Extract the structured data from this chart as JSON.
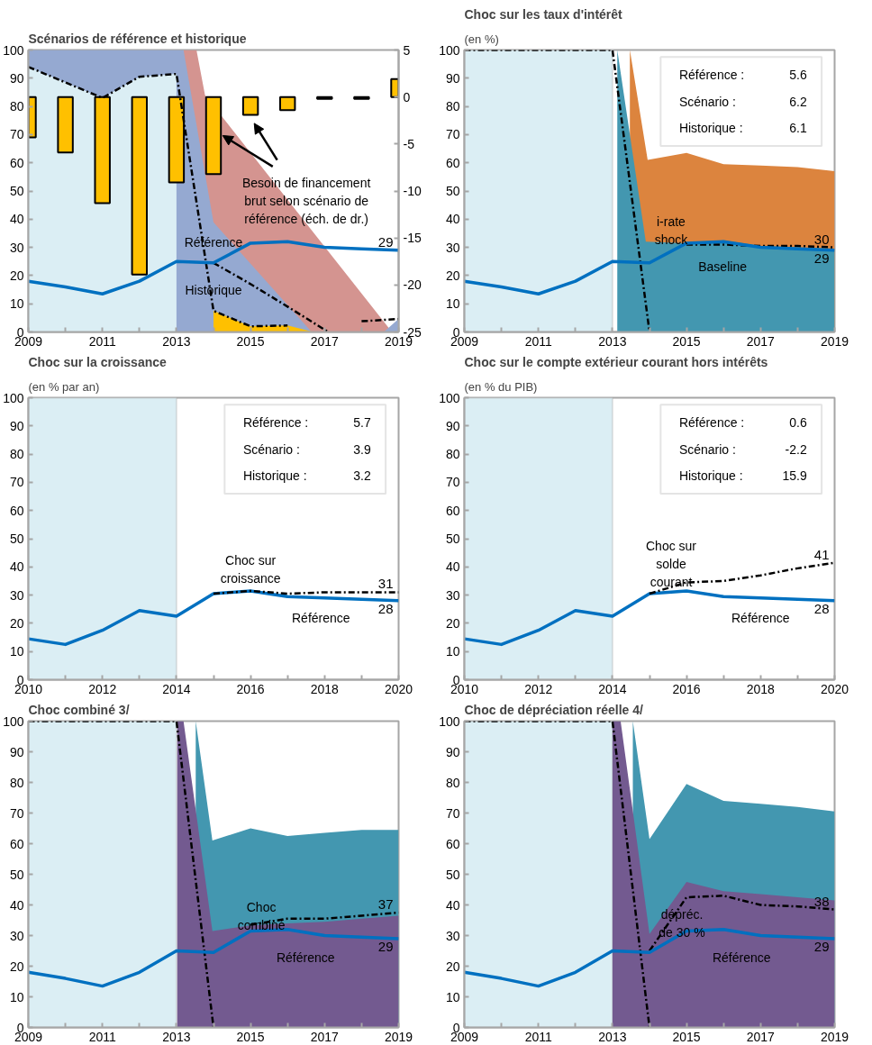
{
  "chart_data": [
    {
      "type": "line",
      "title": "Scénarios de référence et historique",
      "xlim": [
        2009,
        2019
      ],
      "xticks": [
        2009,
        {
          "value": 2010,
          "label": null
        },
        2011,
        {
          "value": 2012,
          "label": null
        },
        2013,
        {
          "value": 2014,
          "label": null
        },
        2015,
        {
          "value": 2016,
          "label": null
        },
        2017,
        {
          "value": 2018,
          "label": null
        },
        2019
      ],
      "ylim": [
        0,
        100
      ],
      "yticks": [
        0,
        10,
        20,
        30,
        40,
        50,
        60,
        70,
        80,
        90,
        100
      ],
      "y2lim": [
        -25,
        5
      ],
      "y2ticks": [
        -25,
        -20,
        -15,
        -10,
        -5,
        0,
        5
      ],
      "series": [
        {
          "type": "area",
          "color": "#d49490",
          "x": [
            2013.19,
            2013.54,
            2013.77,
            2018.82
          ],
          "values": [
            100,
            100,
            84,
            0
          ]
        },
        {
          "type": "area",
          "color": "#95a9d1",
          "x": [
            2009,
            2010,
            2011,
            2012,
            2013,
            2013.19,
            2014,
            2016.65,
            2018.6,
            2019
          ],
          "values": [
            100,
            100,
            100,
            100,
            100,
            100,
            38.9,
            0,
            0,
            4.6
          ]
        },
        {
          "type": "area",
          "color": "#dbeef4",
          "x": [
            2009,
            2010,
            2011,
            2012,
            2013
          ],
          "values": [
            94,
            88.5,
            83,
            90.5,
            91.5
          ]
        },
        {
          "type": "area",
          "color": "#ffc000",
          "x": [
            2014,
            2015,
            2016,
            2016.7
          ],
          "values": [
            7.5,
            2,
            2.3,
            0
          ]
        },
        {
          "type": "bar",
          "axis": "y2",
          "name": "Besoin de financement\nbrut selon scénario de\nréférence (éch. de dr.)",
          "color": "#ffc000",
          "x": [
            2009,
            2010,
            2011,
            2012,
            2013,
            2014,
            2015,
            2016,
            2017,
            2018,
            2019
          ],
          "values": [
            -4.3,
            -5.9,
            -11.3,
            -18.9,
            -9.1,
            -8.2,
            -1.9,
            -1.4,
            -0.2,
            -0.2,
            1.9
          ]
        },
        {
          "color": "#000000",
          "line_style": "dashdot",
          "x": [
            2009,
            2010,
            2011,
            2012,
            2013,
            2014,
            2015,
            2016
          ],
          "values": [
            94,
            88.5,
            83,
            90.5,
            91.5,
            7.5,
            2,
            2.3
          ]
        },
        {
          "color": "#000000",
          "line_style": "dashdot",
          "x": [
            2018,
            2019
          ],
          "values": [
            3.8,
            4.6
          ]
        },
        {
          "name": "Historique",
          "color": "#000000",
          "line_style": "dashdot",
          "x": [
            2014,
            2015,
            2016,
            2017.1
          ],
          "values": [
            24.5,
            17,
            9,
            0
          ]
        },
        {
          "name": "Référence",
          "color": "#0070c0",
          "x": [
            2009,
            2010,
            2011,
            2012,
            2013,
            2014,
            2015,
            2016,
            2017,
            2018,
            2019
          ],
          "values": [
            18,
            16,
            13.5,
            18,
            25,
            24.5,
            31.5,
            32,
            30,
            29.5,
            29
          ],
          "value_labels": [
            null,
            null,
            null,
            null,
            null,
            null,
            null,
            null,
            null,
            null,
            "29"
          ]
        }
      ]
    },
    {
      "type": "line",
      "title": "Choc sur les taux d'intérêt",
      "subtitle": "(en %)",
      "xlim": [
        2009,
        2019
      ],
      "xticks": [
        2009,
        {
          "value": 2010,
          "label": null
        },
        2011,
        {
          "value": 2012,
          "label": null
        },
        2013,
        {
          "value": 2014,
          "label": null
        },
        2015,
        {
          "value": 2016,
          "label": null
        },
        2017,
        {
          "value": 2018,
          "label": null
        },
        2019
      ],
      "ylim": [
        0,
        100
      ],
      "yticks": [
        0,
        10,
        20,
        30,
        40,
        50,
        60,
        70,
        80,
        90,
        100
      ],
      "bands": [
        {
          "axis": "x",
          "from": 2009,
          "to": 2013,
          "color": "#dbeef4"
        }
      ],
      "series": [
        {
          "type": "area",
          "name": "i-rate\nshock",
          "color": "#dc843e",
          "x": [
            2013.47,
            2013.95,
            2015,
            2016,
            2017,
            2018,
            2019
          ],
          "values": [
            100,
            61,
            63.5,
            59.5,
            59,
            58.5,
            57
          ]
        },
        {
          "type": "area",
          "name": "Baseline",
          "color": "#4397b0",
          "x": [
            2013.13,
            2013.9,
            2015,
            2016,
            2017,
            2018,
            2019
          ],
          "values": [
            100,
            32,
            31.5,
            32.5,
            30.5,
            30,
            29.5
          ]
        },
        {
          "color": "#000000",
          "line_style": "dashdot",
          "x": [
            2009,
            2010,
            2011,
            2012,
            2013,
            2014
          ],
          "values": [
            100,
            100,
            100,
            100,
            100,
            0
          ]
        },
        {
          "color": "#000000",
          "line_style": "dashdot",
          "x": [
            2015,
            2016,
            2017,
            2018,
            2019
          ],
          "values": [
            31,
            31,
            30.5,
            30.5,
            30
          ],
          "value_labels": [
            null,
            null,
            null,
            null,
            "30"
          ]
        },
        {
          "color": "#0070c0",
          "x": [
            2009,
            2010,
            2011,
            2012,
            2013,
            2014,
            2015,
            2016,
            2017,
            2018,
            2019
          ],
          "values": [
            18,
            16,
            13.5,
            18,
            25,
            24.5,
            31.5,
            32,
            30,
            29.5,
            29
          ],
          "value_labels": [
            null,
            null,
            null,
            null,
            null,
            null,
            null,
            null,
            null,
            null,
            "29"
          ]
        }
      ],
      "annotations": [
        "Référence :",
        "5.6",
        "Scénario :",
        "6.2",
        "Historique :",
        "6.1"
      ]
    },
    {
      "type": "line",
      "title": "Choc sur la croissance",
      "subtitle": "(en % par an)",
      "xlim": [
        2010,
        2020
      ],
      "xticks": [
        2010,
        {
          "value": 2011,
          "label": null
        },
        2012,
        {
          "value": 2013,
          "label": null
        },
        2014,
        {
          "value": 2015,
          "label": null
        },
        2016,
        {
          "value": 2017,
          "label": null
        },
        2018,
        {
          "value": 2019,
          "label": null
        },
        2020
      ],
      "ylim": [
        0,
        100
      ],
      "yticks": [
        0,
        10,
        20,
        30,
        40,
        50,
        60,
        70,
        80,
        90,
        100
      ],
      "bands": [
        {
          "axis": "x",
          "from": 2010,
          "to": 2014,
          "color": "#dbeef4"
        }
      ],
      "series": [
        {
          "name": "Référence",
          "color": "#0070c0",
          "x": [
            2010,
            2011,
            2012,
            2013,
            2014,
            2015,
            2016,
            2017,
            2018,
            2019,
            2020
          ],
          "values": [
            14.5,
            12.5,
            17.5,
            24.5,
            22.5,
            30.5,
            31.5,
            29.5,
            29,
            28.5,
            28
          ],
          "value_labels": [
            null,
            null,
            null,
            null,
            null,
            null,
            null,
            null,
            null,
            null,
            "28"
          ]
        },
        {
          "name": "Choc sur\ncroissance",
          "color": "#000000",
          "line_style": "dashdot",
          "x": [
            2015,
            2016,
            2017,
            2018,
            2019,
            2020
          ],
          "values": [
            30.5,
            31.5,
            30.5,
            31,
            31,
            31
          ],
          "value_labels": [
            null,
            null,
            null,
            null,
            null,
            "31"
          ]
        }
      ],
      "annotations": [
        "Référence :",
        "5.7",
        "Scénario :",
        "3.9",
        "Historique :",
        "3.2"
      ]
    },
    {
      "type": "line",
      "title": "Choc sur le compte extérieur courant hors intérêts",
      "subtitle": "(en % du PIB)",
      "xlim": [
        2010,
        2020
      ],
      "xticks": [
        2010,
        {
          "value": 2011,
          "label": null
        },
        2012,
        {
          "value": 2013,
          "label": null
        },
        2014,
        {
          "value": 2015,
          "label": null
        },
        2016,
        {
          "value": 2017,
          "label": null
        },
        2018,
        {
          "value": 2019,
          "label": null
        },
        2020
      ],
      "ylim": [
        0,
        100
      ],
      "yticks": [
        0,
        10,
        20,
        30,
        40,
        50,
        60,
        70,
        80,
        90,
        100
      ],
      "bands": [
        {
          "axis": "x",
          "from": 2010,
          "to": 2014,
          "color": "#dbeef4"
        }
      ],
      "series": [
        {
          "name": "Référence",
          "color": "#0070c0",
          "x": [
            2010,
            2011,
            2012,
            2013,
            2014,
            2015,
            2016,
            2017,
            2018,
            2019,
            2020
          ],
          "values": [
            14.5,
            12.5,
            17.5,
            24.5,
            22.5,
            30.5,
            31.5,
            29.5,
            29,
            28.5,
            28
          ],
          "value_labels": [
            null,
            null,
            null,
            null,
            null,
            null,
            null,
            null,
            null,
            null,
            "28"
          ]
        },
        {
          "name": "Choc sur\nsolde\ncourant",
          "color": "#000000",
          "line_style": "dashdot",
          "x": [
            2015,
            2016,
            2017,
            2018,
            2019,
            2020
          ],
          "values": [
            30.5,
            34.5,
            35,
            37,
            39.5,
            41.5
          ],
          "value_labels": [
            null,
            null,
            null,
            null,
            null,
            "41"
          ]
        }
      ],
      "annotations": [
        "Référence :",
        "0.6",
        "Scénario :",
        "-2.2",
        "Historique :",
        "15.9"
      ]
    },
    {
      "type": "line",
      "title": "Choc combiné 3/",
      "xlim": [
        2009,
        2019
      ],
      "xticks": [
        2009,
        {
          "value": 2010,
          "label": null
        },
        2011,
        {
          "value": 2012,
          "label": null
        },
        2013,
        {
          "value": 2014,
          "label": null
        },
        2015,
        {
          "value": 2016,
          "label": null
        },
        2017,
        {
          "value": 2018,
          "label": null
        },
        2019
      ],
      "ylim": [
        0,
        100
      ],
      "yticks": [
        0,
        10,
        20,
        30,
        40,
        50,
        60,
        70,
        80,
        90,
        100
      ],
      "bands": [
        {
          "axis": "x",
          "from": 2009,
          "to": 2013,
          "color": "#dbeef4"
        }
      ],
      "series": [
        {
          "type": "area",
          "color": "#4397b0",
          "x": [
            2013.52,
            2013.97,
            2015,
            2016,
            2017,
            2018,
            2019
          ],
          "values": [
            100,
            61,
            65,
            62.5,
            63.5,
            64.5,
            64.5
          ]
        },
        {
          "type": "area",
          "color": "#735a90",
          "x": [
            2013.02,
            2013.19,
            2013.97,
            2015,
            2016,
            2017,
            2018,
            2019
          ],
          "values": [
            100,
            100,
            31.5,
            33.3,
            34,
            34.5,
            35.5,
            36.5
          ]
        },
        {
          "color": "#000000",
          "line_style": "dashdot",
          "x": [
            2009,
            2010,
            2011,
            2012,
            2013,
            2014
          ],
          "values": [
            100,
            100,
            100,
            100,
            100,
            0
          ]
        },
        {
          "name": "Choc\ncombiné",
          "color": "#000000",
          "line_style": "dashdot",
          "x": [
            2015,
            2016,
            2017,
            2018,
            2019
          ],
          "values": [
            33.5,
            35.5,
            35.5,
            36.5,
            37.5
          ],
          "value_labels": [
            null,
            null,
            null,
            null,
            "37"
          ]
        },
        {
          "name": "Référence",
          "color": "#0070c0",
          "x": [
            2009,
            2010,
            2011,
            2012,
            2013,
            2014,
            2015,
            2016,
            2017,
            2018,
            2019
          ],
          "values": [
            18,
            16,
            13.5,
            18,
            25,
            24.5,
            31.5,
            32,
            30,
            29.5,
            29
          ],
          "value_labels": [
            null,
            null,
            null,
            null,
            null,
            null,
            null,
            null,
            null,
            null,
            "29"
          ]
        }
      ]
    },
    {
      "type": "line",
      "title": "Choc de dépréciation réelle 4/",
      "xlim": [
        2009,
        2019
      ],
      "xticks": [
        2009,
        {
          "value": 2010,
          "label": null
        },
        2011,
        {
          "value": 2012,
          "label": null
        },
        2013,
        {
          "value": 2014,
          "label": null
        },
        2015,
        {
          "value": 2016,
          "label": null
        },
        2017,
        {
          "value": 2018,
          "label": null
        },
        2019
      ],
      "ylim": [
        0,
        100
      ],
      "yticks": [
        0,
        10,
        20,
        30,
        40,
        50,
        60,
        70,
        80,
        90,
        100
      ],
      "bands": [
        {
          "axis": "x",
          "from": 2009,
          "to": 2013,
          "color": "#dbeef4"
        }
      ],
      "series": [
        {
          "type": "area",
          "color": "#4397b0",
          "x": [
            2013.55,
            2014,
            2015,
            2016,
            2017,
            2018,
            2019
          ],
          "values": [
            100,
            61.5,
            79.5,
            74,
            73,
            72,
            70.5
          ]
        },
        {
          "type": "area",
          "color": "#735a90",
          "x": [
            2013,
            2013.22,
            2014,
            2015,
            2016,
            2017,
            2018,
            2019
          ],
          "values": [
            100,
            100,
            30.5,
            47.5,
            44.5,
            43.5,
            42.5,
            41.5
          ]
        },
        {
          "color": "#000000",
          "line_style": "dashdot",
          "x": [
            2009,
            2010,
            2011,
            2012,
            2013,
            2014
          ],
          "values": [
            100,
            100,
            100,
            100,
            100,
            0
          ]
        },
        {
          "name": "dépréc.\nde 30 %",
          "color": "#000000",
          "line_style": "dashdot",
          "x": [
            2014,
            2015,
            2016,
            2017,
            2018,
            2019
          ],
          "values": [
            25,
            42.5,
            43,
            40,
            39.5,
            38.5
          ],
          "value_labels": [
            null,
            null,
            null,
            null,
            null,
            "38"
          ]
        },
        {
          "name": "Référence",
          "color": "#0070c0",
          "x": [
            2009,
            2010,
            2011,
            2012,
            2013,
            2014,
            2015,
            2016,
            2017,
            2018,
            2019
          ],
          "values": [
            18,
            16,
            13.5,
            18,
            25,
            24.5,
            31.5,
            32,
            30,
            29.5,
            29
          ],
          "value_labels": [
            null,
            null,
            null,
            null,
            null,
            null,
            null,
            null,
            null,
            null,
            "29"
          ]
        }
      ]
    }
  ]
}
